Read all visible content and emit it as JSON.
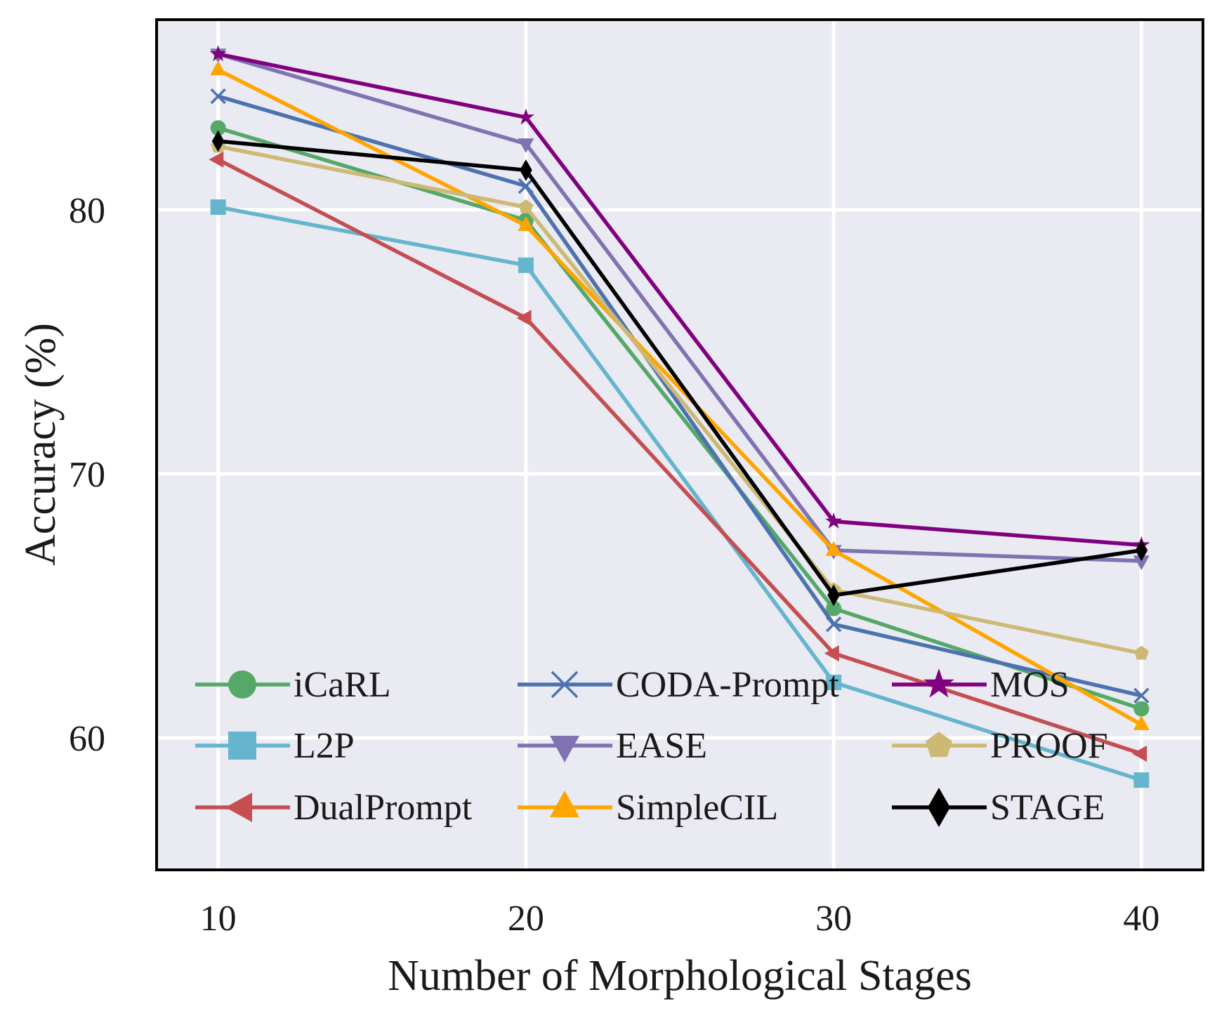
{
  "chart_data": {
    "type": "line",
    "title": "",
    "xlabel": "Number of Morphological Stages",
    "ylabel": "Accuracy (%)",
    "x": [
      10,
      20,
      30,
      40
    ],
    "xticks": [
      10,
      20,
      30,
      40
    ],
    "yticks": [
      60,
      70,
      80
    ],
    "xlim": [
      8,
      42
    ],
    "ylim": [
      55,
      87.2
    ],
    "grid": true,
    "legend": "lower-center, 3 columns",
    "series": [
      {
        "name": "iCaRL",
        "color": "#55A868",
        "marker": "circle",
        "values": [
          83.1,
          79.6,
          64.9,
          61.1
        ]
      },
      {
        "name": "L2P",
        "color": "#64B5CD",
        "marker": "square",
        "values": [
          80.1,
          77.9,
          62.1,
          58.4
        ]
      },
      {
        "name": "DualPrompt",
        "color": "#C44E52",
        "marker": "triangle-left",
        "values": [
          81.9,
          75.9,
          63.2,
          59.4
        ]
      },
      {
        "name": "CODA-Prompt",
        "color": "#4C72B0",
        "marker": "x",
        "values": [
          84.3,
          80.9,
          64.3,
          61.6
        ]
      },
      {
        "name": "EASE",
        "color": "#8172B2",
        "marker": "triangle-down",
        "values": [
          85.9,
          82.5,
          67.1,
          66.7
        ]
      },
      {
        "name": "SimpleCIL",
        "color": "#FFA500",
        "marker": "triangle-up",
        "values": [
          85.3,
          79.4,
          67.1,
          60.5
        ]
      },
      {
        "name": "MOS",
        "color": "#800080",
        "marker": "star",
        "values": [
          85.9,
          83.5,
          68.2,
          67.3
        ]
      },
      {
        "name": "PROOF",
        "color": "#CCB974",
        "marker": "pentagon",
        "values": [
          82.4,
          80.1,
          65.6,
          63.2
        ]
      },
      {
        "name": "STAGE",
        "color": "#000000",
        "marker": "diamond",
        "values": [
          82.6,
          81.5,
          65.4,
          67.1
        ]
      }
    ]
  }
}
